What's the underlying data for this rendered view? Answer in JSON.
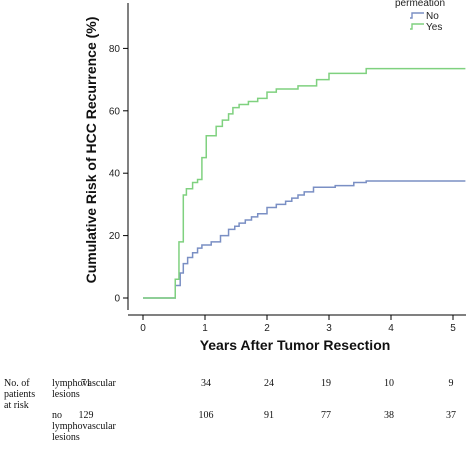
{
  "chart_data": {
    "type": "line",
    "step": true,
    "xlabel": "Years After Tumor Resection",
    "ylabel": "Cumulative Risk of HCC Recurrence (%)",
    "xlim": [
      0,
      5.2
    ],
    "ylim": [
      0,
      95
    ],
    "x_ticks": [
      0,
      1,
      2,
      3,
      4,
      5
    ],
    "y_ticks": [
      0,
      20,
      40,
      60,
      80
    ],
    "legend": {
      "title": "permeation",
      "placement": "top-right",
      "entries": [
        "No",
        "Yes"
      ]
    },
    "series": [
      {
        "name": "No",
        "color": "#7a8fc4",
        "x": [
          0,
          0.52,
          0.6,
          0.65,
          0.72,
          0.8,
          0.88,
          0.95,
          1.1,
          1.25,
          1.38,
          1.48,
          1.55,
          1.65,
          1.75,
          1.85,
          2.0,
          2.15,
          2.3,
          2.4,
          2.5,
          2.6,
          2.75,
          3.1,
          3.4,
          3.6,
          5.2
        ],
        "y": [
          0,
          4,
          8,
          11,
          13,
          14.5,
          16,
          17,
          18,
          20,
          22,
          23,
          24,
          25,
          26,
          27,
          29,
          30,
          31,
          32,
          33,
          34,
          35.5,
          36,
          37,
          37.5,
          37.5
        ]
      },
      {
        "name": "Yes",
        "color": "#7fd17f",
        "x": [
          0,
          0.52,
          0.58,
          0.65,
          0.7,
          0.8,
          0.88,
          0.95,
          1.02,
          1.18,
          1.28,
          1.38,
          1.45,
          1.55,
          1.7,
          1.85,
          2.0,
          2.15,
          2.5,
          2.8,
          3.0,
          3.6,
          5.2
        ],
        "y": [
          0,
          6,
          18,
          33,
          35,
          37,
          38,
          45,
          52,
          55,
          57,
          59,
          61,
          62,
          63,
          64,
          66,
          67,
          68,
          70,
          72,
          73.5,
          73.5
        ]
      }
    ],
    "risk_table": {
      "header": [
        "No. of",
        "patients",
        "at risk"
      ],
      "rows": [
        {
          "label_lines": [
            "lymphovascular",
            "lesions"
          ],
          "values": [
            "71",
            "34",
            "24",
            "19",
            "10",
            "9"
          ]
        },
        {
          "label_lines": [
            "no",
            "lymphovascular",
            "lesions"
          ],
          "values": [
            "129",
            "106",
            "91",
            "77",
            "38",
            "37"
          ]
        }
      ]
    }
  }
}
